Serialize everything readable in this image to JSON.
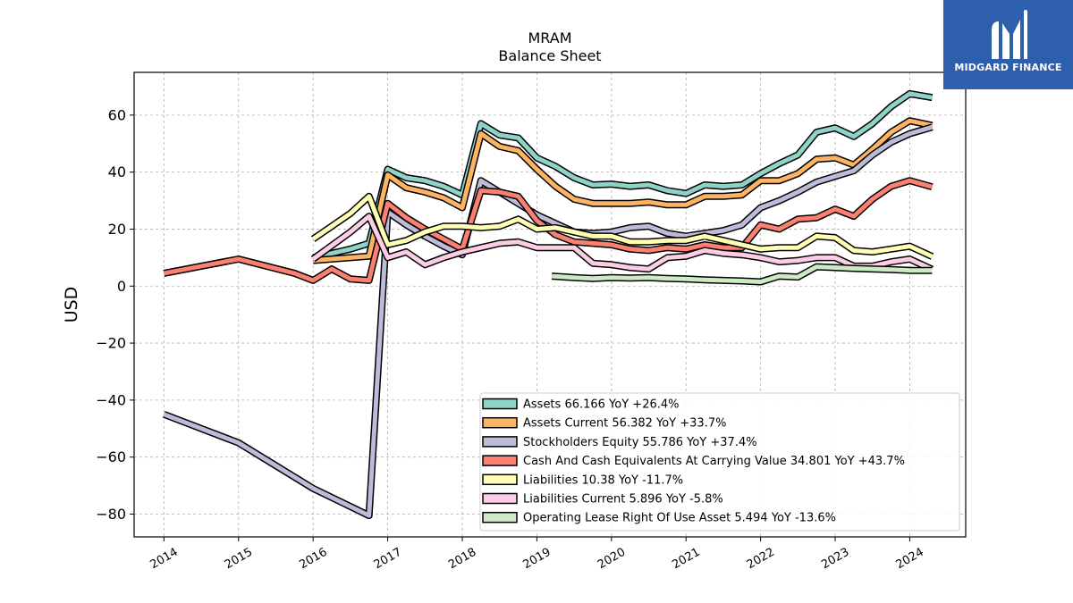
{
  "logo": {
    "text": "MIDGARD FINANCE",
    "icon": "midgard-m-logo-icon",
    "background": "#2e5fad"
  },
  "chart_data": {
    "type": "line",
    "title": "MRAM",
    "subtitle": "Balance  Sheet",
    "ylabel": "USD",
    "xlabel": "",
    "xlim": [
      2013.6,
      2024.75
    ],
    "ylim": [
      -88,
      75
    ],
    "yticks": [
      60,
      40,
      20,
      0,
      -20,
      -40,
      -60,
      -80
    ],
    "ytick_labels": [
      "60",
      "40",
      "20",
      "0",
      "−20",
      "−40",
      "−60",
      "−80"
    ],
    "xticks": [
      2014,
      2015,
      2016,
      2017,
      2018,
      2019,
      2020,
      2021,
      2022,
      2023,
      2024
    ],
    "xtick_labels": [
      "2014",
      "2015",
      "2016",
      "2017",
      "2018",
      "2019",
      "2020",
      "2021",
      "2022",
      "2023",
      "2024"
    ],
    "grid": true,
    "legend_position": "lower-right",
    "series": [
      {
        "name": "Assets",
        "legend": "Assets  66.166 YoY +26.4%",
        "color": "#8dd3c7",
        "points": [
          [
            2016.0,
            10
          ],
          [
            2016.5,
            13
          ],
          [
            2016.75,
            15
          ],
          [
            2017.0,
            41
          ],
          [
            2017.25,
            38
          ],
          [
            2017.5,
            37
          ],
          [
            2017.75,
            35
          ],
          [
            2018.0,
            32
          ],
          [
            2018.25,
            57
          ],
          [
            2018.5,
            53
          ],
          [
            2018.75,
            52
          ],
          [
            2019.0,
            45
          ],
          [
            2019.25,
            42
          ],
          [
            2019.5,
            38
          ],
          [
            2019.75,
            35.5
          ],
          [
            2020.0,
            35.8
          ],
          [
            2020.25,
            35
          ],
          [
            2020.5,
            35.5
          ],
          [
            2020.75,
            33.5
          ],
          [
            2021.0,
            32.5
          ],
          [
            2021.25,
            35.5
          ],
          [
            2021.5,
            35
          ],
          [
            2021.75,
            35.5
          ],
          [
            2022.0,
            39.5
          ],
          [
            2022.25,
            43
          ],
          [
            2022.5,
            46
          ],
          [
            2022.75,
            54
          ],
          [
            2023.0,
            55.5
          ],
          [
            2023.25,
            52.5
          ],
          [
            2023.5,
            57
          ],
          [
            2023.75,
            63
          ],
          [
            2024.0,
            67.5
          ],
          [
            2024.3,
            66.166
          ]
        ]
      },
      {
        "name": "Assets Current",
        "legend": "Assets Current  56.382 YoY +33.7%",
        "color": "#fdb462",
        "points": [
          [
            2016.0,
            9
          ],
          [
            2016.5,
            10
          ],
          [
            2016.75,
            10.5
          ],
          [
            2017.0,
            39
          ],
          [
            2017.25,
            34.5
          ],
          [
            2017.5,
            33
          ],
          [
            2017.75,
            31
          ],
          [
            2018.0,
            27.5
          ],
          [
            2018.25,
            53.5
          ],
          [
            2018.5,
            49
          ],
          [
            2018.75,
            47.5
          ],
          [
            2019.0,
            41
          ],
          [
            2019.25,
            35
          ],
          [
            2019.5,
            30.5
          ],
          [
            2019.75,
            29
          ],
          [
            2020.0,
            29
          ],
          [
            2020.25,
            29
          ],
          [
            2020.5,
            29.5
          ],
          [
            2020.75,
            28.5
          ],
          [
            2021.0,
            28.5
          ],
          [
            2021.25,
            31.5
          ],
          [
            2021.5,
            31.5
          ],
          [
            2021.75,
            32
          ],
          [
            2022.0,
            37
          ],
          [
            2022.25,
            37
          ],
          [
            2022.5,
            39.5
          ],
          [
            2022.75,
            44.5
          ],
          [
            2023.0,
            45
          ],
          [
            2023.25,
            42.5
          ],
          [
            2023.5,
            48
          ],
          [
            2023.75,
            54
          ],
          [
            2024.0,
            58
          ],
          [
            2024.3,
            56.382
          ]
        ]
      },
      {
        "name": "Stockholders Equity",
        "legend": "Stockholders Equity  55.786 YoY +37.4%",
        "color": "#bebada",
        "points": [
          [
            2014.0,
            -45
          ],
          [
            2015.0,
            -55
          ],
          [
            2016.0,
            -71
          ],
          [
            2016.75,
            -80.5
          ],
          [
            2017.0,
            26
          ],
          [
            2017.25,
            21.5
          ],
          [
            2017.5,
            17.5
          ],
          [
            2017.75,
            14
          ],
          [
            2018.0,
            11
          ],
          [
            2018.25,
            37
          ],
          [
            2018.5,
            33
          ],
          [
            2018.75,
            29
          ],
          [
            2019.0,
            25
          ],
          [
            2019.25,
            22
          ],
          [
            2019.5,
            19
          ],
          [
            2019.75,
            18.5
          ],
          [
            2020.0,
            19
          ],
          [
            2020.25,
            20.5
          ],
          [
            2020.5,
            21
          ],
          [
            2020.75,
            18.5
          ],
          [
            2021.0,
            17.5
          ],
          [
            2021.25,
            18.5
          ],
          [
            2021.5,
            19.5
          ],
          [
            2021.75,
            21.5
          ],
          [
            2022.0,
            27.5
          ],
          [
            2022.25,
            30
          ],
          [
            2022.5,
            33
          ],
          [
            2022.75,
            36.5
          ],
          [
            2023.0,
            38.5
          ],
          [
            2023.25,
            40.5
          ],
          [
            2023.5,
            46
          ],
          [
            2023.75,
            50.5
          ],
          [
            2024.0,
            53.5
          ],
          [
            2024.3,
            55.786
          ]
        ]
      },
      {
        "name": "Cash And Cash Equivalents At Carrying Value",
        "legend": "Cash And Cash Equivalents At Carrying Value  34.801 YoY +43.7%",
        "color": "#fb8072",
        "points": [
          [
            2014.0,
            4.5
          ],
          [
            2015.0,
            9.5
          ],
          [
            2015.75,
            4.5
          ],
          [
            2016.0,
            2
          ],
          [
            2016.25,
            6
          ],
          [
            2016.5,
            2.5
          ],
          [
            2016.75,
            2
          ],
          [
            2017.0,
            29
          ],
          [
            2017.25,
            24
          ],
          [
            2017.5,
            20
          ],
          [
            2017.75,
            16.5
          ],
          [
            2018.0,
            13
          ],
          [
            2018.25,
            33.5
          ],
          [
            2018.5,
            33
          ],
          [
            2018.75,
            31.5
          ],
          [
            2019.0,
            23
          ],
          [
            2019.25,
            18
          ],
          [
            2019.5,
            15.5
          ],
          [
            2019.75,
            15
          ],
          [
            2020.0,
            14.5
          ],
          [
            2020.25,
            13
          ],
          [
            2020.5,
            12.5
          ],
          [
            2020.75,
            13.5
          ],
          [
            2021.0,
            13
          ],
          [
            2021.25,
            14.5
          ],
          [
            2021.5,
            13.5
          ],
          [
            2021.75,
            13.5
          ],
          [
            2022.0,
            21.5
          ],
          [
            2022.25,
            20
          ],
          [
            2022.5,
            23.5
          ],
          [
            2022.75,
            24
          ],
          [
            2023.0,
            27
          ],
          [
            2023.25,
            24.5
          ],
          [
            2023.5,
            30.5
          ],
          [
            2023.75,
            35
          ],
          [
            2024.0,
            37
          ],
          [
            2024.3,
            34.801
          ]
        ]
      },
      {
        "name": "Liabilities",
        "legend": "Liabilities  10.38 YoY -11.7%",
        "color": "#ffffb3",
        "points": [
          [
            2016.0,
            16.5
          ],
          [
            2016.5,
            25.5
          ],
          [
            2016.75,
            31.5
          ],
          [
            2017.0,
            14.5
          ],
          [
            2017.25,
            16
          ],
          [
            2017.5,
            19
          ],
          [
            2017.75,
            21
          ],
          [
            2018.0,
            21
          ],
          [
            2018.25,
            20.5
          ],
          [
            2018.5,
            21
          ],
          [
            2018.75,
            23.5
          ],
          [
            2019.0,
            20
          ],
          [
            2019.25,
            20.5
          ],
          [
            2019.5,
            19
          ],
          [
            2019.75,
            17.5
          ],
          [
            2020.0,
            17.5
          ],
          [
            2020.25,
            15.5
          ],
          [
            2020.5,
            15.5
          ],
          [
            2020.75,
            16
          ],
          [
            2021.0,
            16
          ],
          [
            2021.25,
            17.5
          ],
          [
            2021.5,
            16
          ],
          [
            2021.75,
            14.5
          ],
          [
            2022.0,
            13
          ],
          [
            2022.25,
            13.5
          ],
          [
            2022.5,
            13.5
          ],
          [
            2022.75,
            17.5
          ],
          [
            2023.0,
            17
          ],
          [
            2023.25,
            12.5
          ],
          [
            2023.5,
            12
          ],
          [
            2023.75,
            13
          ],
          [
            2024.0,
            14
          ],
          [
            2024.3,
            10.38
          ]
        ]
      },
      {
        "name": "Liabilities Current",
        "legend": "Liabilities Current  5.896 YoY -5.8%",
        "color": "#fccde5",
        "points": [
          [
            2016.0,
            9.5
          ],
          [
            2016.5,
            19
          ],
          [
            2016.75,
            24.5
          ],
          [
            2017.0,
            10
          ],
          [
            2017.25,
            12
          ],
          [
            2017.5,
            7.5
          ],
          [
            2017.75,
            10
          ],
          [
            2018.0,
            12
          ],
          [
            2018.25,
            13.5
          ],
          [
            2018.5,
            15
          ],
          [
            2018.75,
            15.5
          ],
          [
            2019.0,
            13.5
          ],
          [
            2019.25,
            13.5
          ],
          [
            2019.5,
            13.5
          ],
          [
            2019.75,
            8
          ],
          [
            2020.0,
            7.5
          ],
          [
            2020.25,
            6.5
          ],
          [
            2020.5,
            6
          ],
          [
            2020.75,
            10
          ],
          [
            2021.0,
            10.5
          ],
          [
            2021.25,
            12.5
          ],
          [
            2021.5,
            11.5
          ],
          [
            2021.75,
            11
          ],
          [
            2022.0,
            10
          ],
          [
            2022.25,
            8.5
          ],
          [
            2022.5,
            9
          ],
          [
            2022.75,
            10
          ],
          [
            2023.0,
            10
          ],
          [
            2023.25,
            7
          ],
          [
            2023.5,
            7
          ],
          [
            2023.75,
            8.5
          ],
          [
            2024.0,
            9.5
          ],
          [
            2024.3,
            5.896
          ]
        ]
      },
      {
        "name": "Operating Lease Right Of Use Asset",
        "legend": "Operating Lease Right Of Use Asset  5.494 YoY -13.6%",
        "color": "#ccebc5",
        "points": [
          [
            2019.2,
            3.5
          ],
          [
            2019.5,
            3
          ],
          [
            2019.75,
            2.7
          ],
          [
            2020.0,
            3
          ],
          [
            2020.25,
            2.8
          ],
          [
            2020.5,
            3
          ],
          [
            2020.75,
            2.7
          ],
          [
            2021.0,
            2.5
          ],
          [
            2021.25,
            2.2
          ],
          [
            2021.5,
            2
          ],
          [
            2021.75,
            1.8
          ],
          [
            2022.0,
            1.5
          ],
          [
            2022.25,
            3.5
          ],
          [
            2022.5,
            3.2
          ],
          [
            2022.75,
            6.8
          ],
          [
            2023.0,
            6.5
          ],
          [
            2023.25,
            6.2
          ],
          [
            2023.5,
            6
          ],
          [
            2023.75,
            5.8
          ],
          [
            2024.0,
            5.5
          ],
          [
            2024.3,
            5.494
          ]
        ]
      }
    ]
  }
}
